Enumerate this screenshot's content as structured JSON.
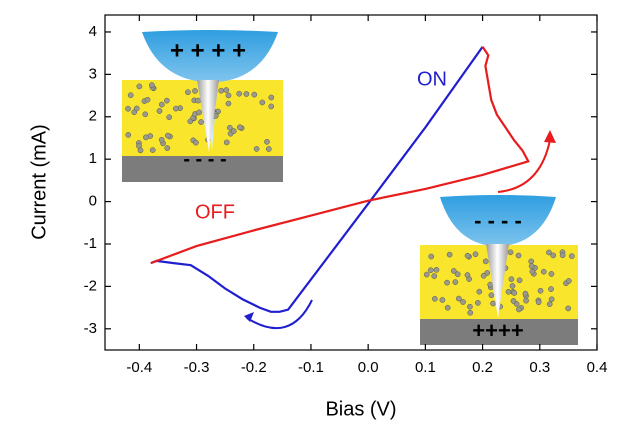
{
  "chart_data": {
    "type": "line",
    "xlabel": "Bias (V)",
    "ylabel": "Current (mA)",
    "xlim": [
      -0.46,
      0.4
    ],
    "ylim": [
      -3.5,
      4.4
    ],
    "xticks": [
      -0.4,
      -0.3,
      -0.2,
      -0.1,
      {
        "value": 0,
        "label": "0.0"
      },
      0.1,
      0.2,
      0.3,
      0.4
    ],
    "yticks": [
      -3,
      -2,
      -1,
      0,
      1,
      2,
      3,
      4
    ],
    "series": [
      {
        "name": "ON",
        "color": "#1f1fd0",
        "x": [
          -0.38,
          -0.37,
          -0.34,
          -0.31,
          -0.28,
          -0.25,
          -0.22,
          -0.19,
          -0.17,
          -0.155,
          -0.14,
          0.0,
          0.1,
          0.2
        ],
        "values": [
          -1.45,
          -1.4,
          -1.45,
          -1.5,
          -1.75,
          -2.05,
          -2.3,
          -2.5,
          -2.6,
          -2.6,
          -2.55,
          -0.05,
          1.75,
          3.65
        ]
      },
      {
        "name": "OFF",
        "color": "#e81c1c",
        "x": [
          0.2,
          0.21,
          0.205,
          0.21,
          0.215,
          0.225,
          0.24,
          0.255,
          0.27,
          0.28,
          0.2,
          0.1,
          0.0,
          -0.1,
          -0.2,
          -0.3,
          -0.38
        ],
        "values": [
          3.65,
          3.45,
          3.2,
          2.8,
          2.4,
          2.05,
          1.75,
          1.45,
          1.2,
          0.95,
          0.63,
          0.3,
          0.02,
          -0.33,
          -0.68,
          -1.05,
          -1.45
        ]
      }
    ]
  },
  "insets": [
    {
      "tip": "+ + + +",
      "substrate": "- - - -"
    },
    {
      "tip": "- - - -",
      "substrate": "++++"
    }
  ]
}
